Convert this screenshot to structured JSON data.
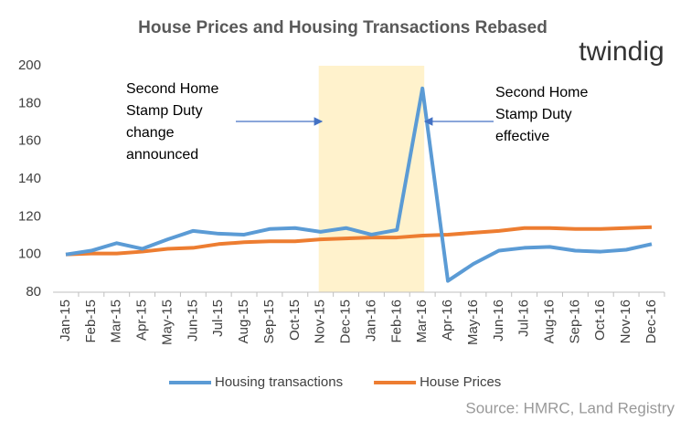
{
  "chart_data": {
    "type": "line",
    "title": "House Prices and Housing Transactions  Rebased",
    "logo": "twindig",
    "source": "Source: HMRC, Land Registry",
    "categories": [
      "Jan-15",
      "Feb-15",
      "Mar-15",
      "Apr-15",
      "May-15",
      "Jun-15",
      "Jul-15",
      "Aug-15",
      "Sep-15",
      "Oct-15",
      "Nov-15",
      "Dec-15",
      "Jan-16",
      "Feb-16",
      "Mar-16",
      "Apr-16",
      "May-16",
      "Jun-16",
      "Jul-16",
      "Aug-16",
      "Sep-16",
      "Oct-16",
      "Nov-16",
      "Dec-16"
    ],
    "series": [
      {
        "name": "Housing transactions",
        "color": "#5b9bd5",
        "values": [
          100,
          102,
          106,
          103,
          108,
          112.5,
          111,
          110.5,
          113.5,
          114,
          112,
          114,
          110.5,
          113,
          188,
          86,
          95,
          102,
          103.5,
          104,
          102,
          101.5,
          102.5,
          105.5
        ]
      },
      {
        "name": "House Prices",
        "color": "#ed7d31",
        "values": [
          100,
          100.5,
          100.5,
          101.5,
          103,
          103.5,
          105.5,
          106.5,
          107,
          107,
          108,
          108.5,
          109,
          109,
          110,
          110.5,
          111.5,
          112.5,
          114,
          114,
          113.5,
          113.5,
          114,
          114.5
        ]
      }
    ],
    "ylim": [
      80,
      200
    ],
    "yticks": [
      80,
      100,
      120,
      140,
      160,
      180,
      200
    ],
    "grid": false,
    "shaded_range": [
      "Nov-15",
      "Mar-16"
    ],
    "shade_color": "#fff2cc",
    "annotations": [
      {
        "lines": [
          "Second Home",
          "Stamp Duty",
          "change",
          "announced"
        ]
      },
      {
        "lines": [
          "Second Home",
          "Stamp Duty",
          "effective"
        ]
      }
    ],
    "legend": "bottom"
  }
}
